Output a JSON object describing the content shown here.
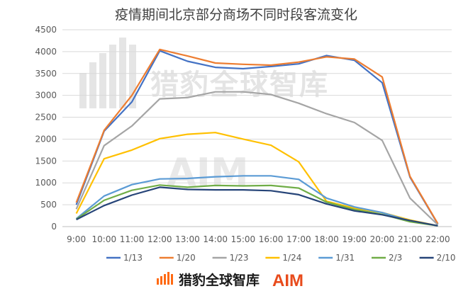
{
  "chart_data": {
    "type": "line",
    "title": "疫情期间北京部分商场不同时段客流变化",
    "xlabel": "",
    "ylabel": "",
    "ylim": [
      0,
      4500
    ],
    "yticks": [
      0,
      500,
      1000,
      1500,
      2000,
      2500,
      3000,
      3500,
      4000,
      4500
    ],
    "grid": true,
    "legend_position": "bottom",
    "x": [
      "9:00",
      "10:00",
      "11:00",
      "12:00",
      "13:00",
      "14:00",
      "15:00",
      "16:00",
      "17:00",
      "18:00",
      "19:00",
      "20:00",
      "21:00",
      "22:00"
    ],
    "series": [
      {
        "name": "1/13",
        "color": "#4472c4",
        "values": [
          500,
          2180,
          2850,
          4020,
          3780,
          3640,
          3610,
          3660,
          3720,
          3910,
          3800,
          3290,
          1130,
          60
        ]
      },
      {
        "name": "1/20",
        "color": "#ed7d31",
        "values": [
          550,
          2200,
          3000,
          4050,
          3900,
          3740,
          3710,
          3690,
          3760,
          3880,
          3830,
          3420,
          1150,
          70
        ]
      },
      {
        "name": "1/23",
        "color": "#a5a5a5",
        "values": [
          400,
          1850,
          2300,
          2920,
          2950,
          3080,
          3080,
          3020,
          2820,
          2580,
          2380,
          1970,
          650,
          40
        ]
      },
      {
        "name": "1/24",
        "color": "#ffc000",
        "values": [
          300,
          1550,
          1750,
          2010,
          2110,
          2150,
          2000,
          1860,
          1480,
          580,
          420,
          320,
          150,
          20
        ]
      },
      {
        "name": "1/31",
        "color": "#5b9bd5",
        "values": [
          180,
          700,
          960,
          1090,
          1100,
          1140,
          1160,
          1160,
          1080,
          650,
          450,
          320,
          130,
          20
        ]
      },
      {
        "name": "2/3",
        "color": "#70ad47",
        "values": [
          170,
          600,
          830,
          950,
          900,
          940,
          930,
          940,
          880,
          560,
          390,
          280,
          110,
          20
        ]
      },
      {
        "name": "2/10",
        "color": "#264478",
        "values": [
          160,
          480,
          720,
          900,
          850,
          840,
          840,
          820,
          730,
          520,
          360,
          270,
          140,
          20
        ]
      }
    ]
  },
  "watermark": {
    "text": "猎豹全球智库",
    "aim": "AIM"
  },
  "footer": {
    "brand_text": "猎豹全球智库",
    "aim_text": "AIM",
    "brand_color": "#ff6a13",
    "aim_color": "#e84b1c"
  }
}
